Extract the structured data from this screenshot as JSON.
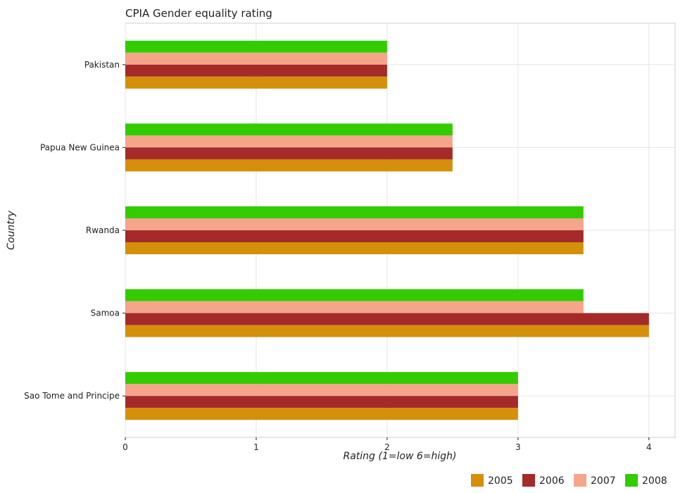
{
  "chart_data": {
    "type": "bar",
    "orientation": "horizontal",
    "title": "CPIA Gender equality rating",
    "xlabel": "Rating (1=low 6=high)",
    "ylabel": "Country",
    "categories": [
      "Pakistan",
      "Papua New Guinea",
      "Rwanda",
      "Samoa",
      "Sao Tome and Principe"
    ],
    "series": [
      {
        "name": "2005",
        "color": "#d4900a",
        "values": [
          2.0,
          2.5,
          3.5,
          4.0,
          3.0
        ]
      },
      {
        "name": "2006",
        "color": "#a52a2a",
        "values": [
          2.0,
          2.5,
          3.5,
          4.0,
          3.0
        ]
      },
      {
        "name": "2007",
        "color": "#f4a58a",
        "values": [
          2.0,
          2.5,
          3.5,
          3.5,
          3.0
        ]
      },
      {
        "name": "2008",
        "color": "#33cc00",
        "values": [
          2.0,
          2.5,
          3.5,
          3.5,
          3.0
        ]
      }
    ],
    "xlim": [
      0,
      4.2
    ],
    "xticks": [
      "0",
      "1",
      "2",
      "3",
      "4"
    ],
    "grid": true,
    "legend_position": "bottom-right"
  }
}
